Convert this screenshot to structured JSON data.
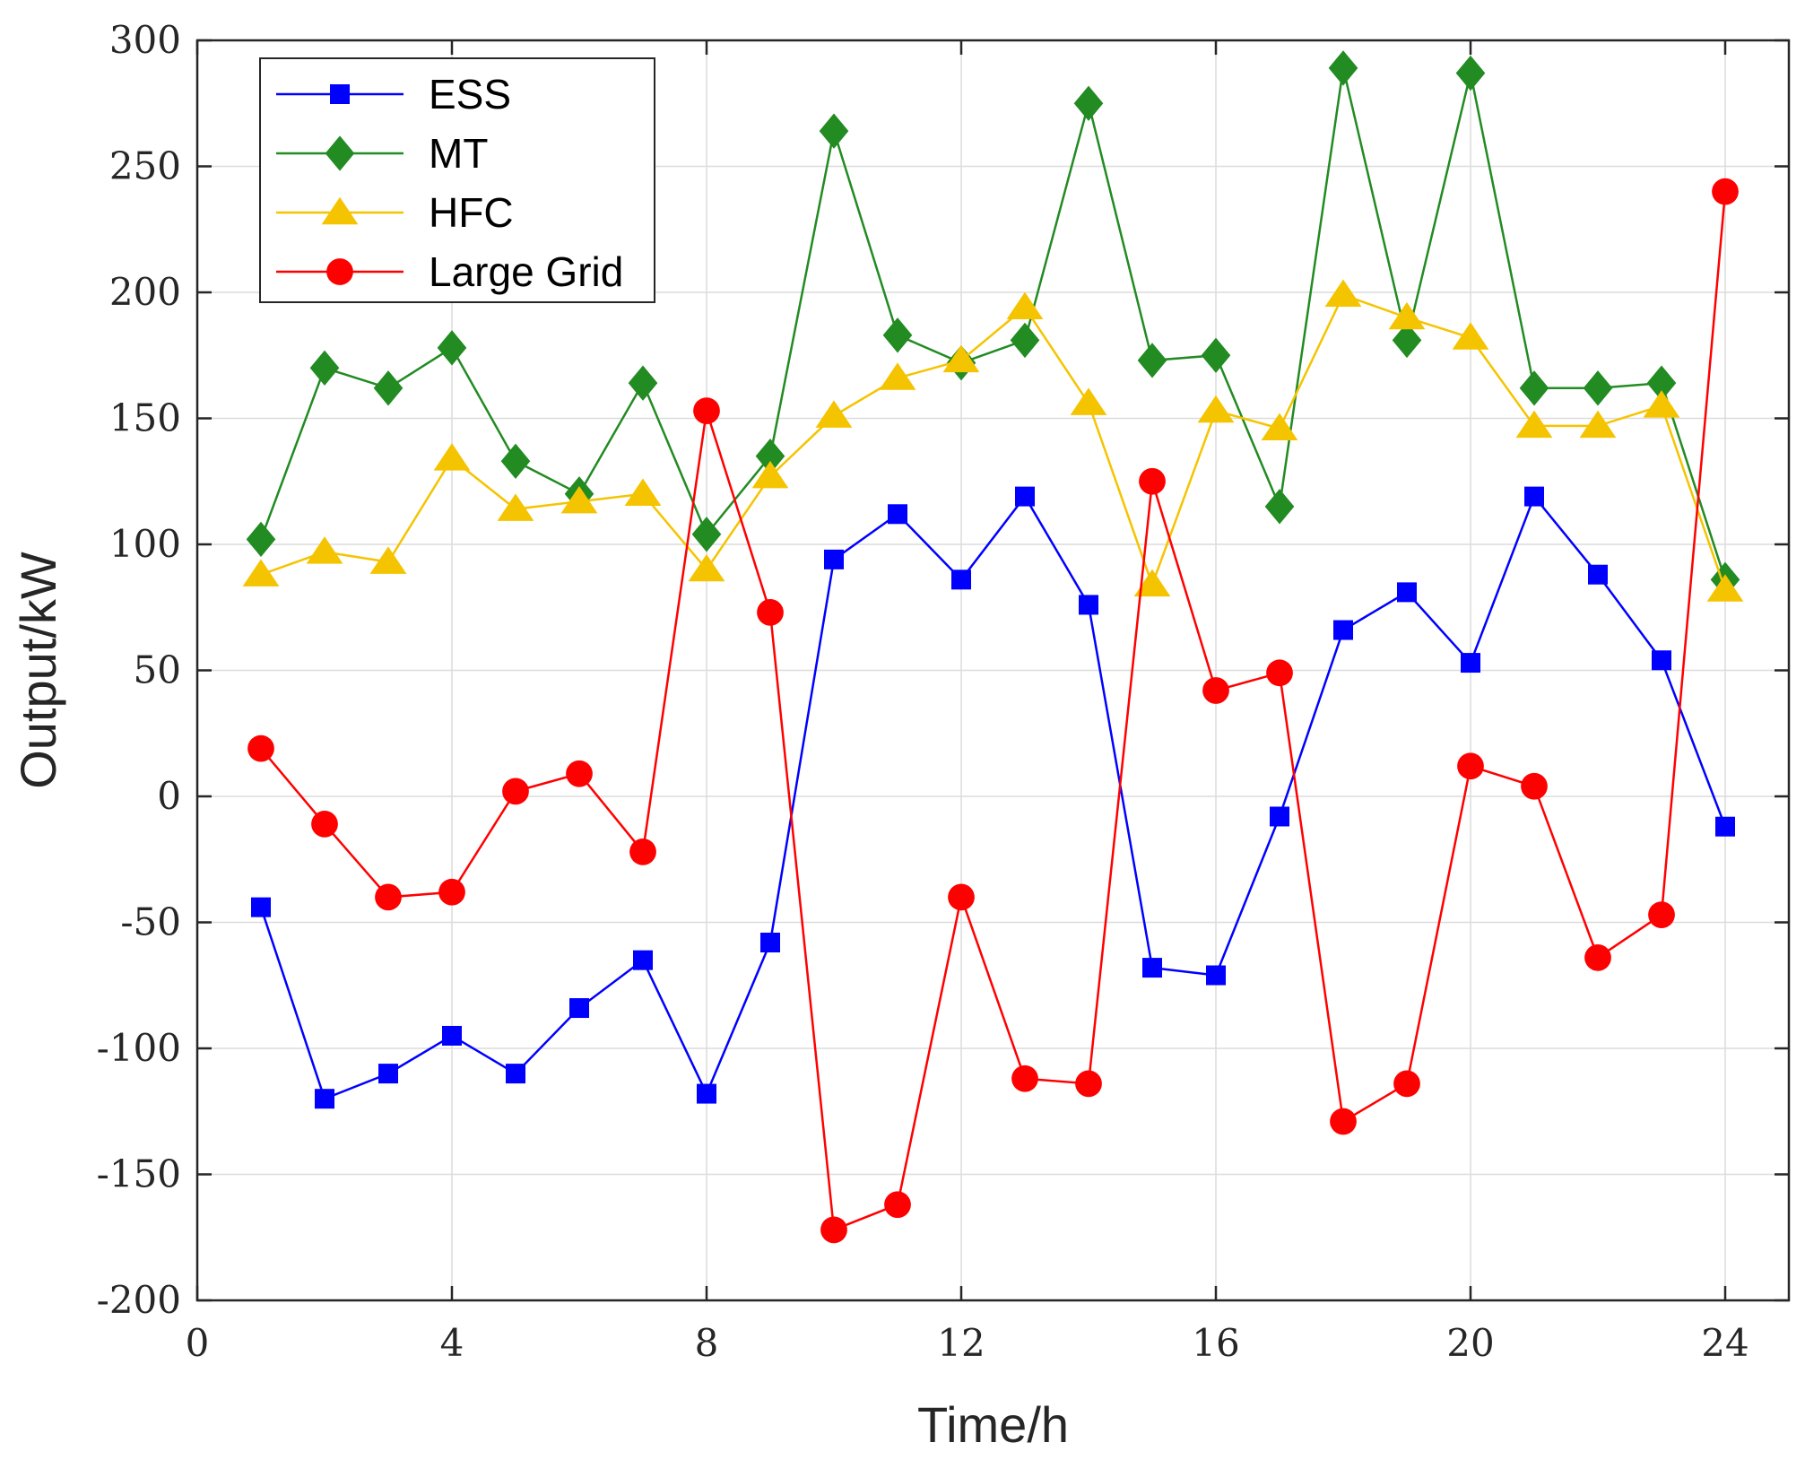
{
  "chart_data": {
    "type": "line",
    "title": "",
    "xlabel": "Time/h",
    "ylabel": "Output/kW",
    "xlim": [
      0,
      25
    ],
    "ylim": [
      -200,
      300
    ],
    "xticks": [
      0,
      4,
      8,
      12,
      16,
      20,
      24
    ],
    "xtick_labels": [
      "0",
      "4",
      "8",
      "12",
      "16",
      "20",
      "24"
    ],
    "yticks": [
      -200,
      -150,
      -100,
      -50,
      0,
      50,
      100,
      150,
      200,
      250,
      300
    ],
    "ytick_labels": [
      "-200",
      "-150",
      "-100",
      "-50",
      "0",
      "50",
      "100",
      "150",
      "200",
      "250",
      "300"
    ],
    "grid": true,
    "legend_position": "top-left",
    "x": [
      1,
      2,
      3,
      4,
      5,
      6,
      7,
      8,
      9,
      10,
      11,
      12,
      13,
      14,
      15,
      16,
      17,
      18,
      19,
      20,
      21,
      22,
      23,
      24
    ],
    "series": [
      {
        "name": "ESS",
        "color": "#0000ff",
        "marker": "square",
        "values": [
          -44,
          -120,
          -110,
          -95,
          -110,
          -84,
          -65,
          -118,
          -58,
          94,
          112,
          86,
          119,
          76,
          -68,
          -71,
          -8,
          66,
          81,
          53,
          119,
          88,
          54,
          -12
        ]
      },
      {
        "name": "MT",
        "color": "#228b22",
        "marker": "diamond",
        "values": [
          102,
          170,
          162,
          178,
          133,
          120,
          164,
          104,
          135,
          264,
          183,
          172,
          181,
          275,
          173,
          175,
          115,
          289,
          181,
          287,
          162,
          162,
          164,
          86
        ]
      },
      {
        "name": "HFC",
        "color": "#f5c400",
        "marker": "triangle",
        "values": [
          88,
          97,
          93,
          134,
          114,
          117,
          120,
          90,
          127,
          151,
          166,
          173,
          194,
          156,
          84,
          153,
          146,
          199,
          190,
          182,
          147,
          147,
          155,
          82
        ]
      },
      {
        "name": "Large Grid",
        "color": "#ff0000",
        "marker": "circle",
        "values": [
          19,
          -11,
          -40,
          -38,
          2,
          9,
          -22,
          153,
          73,
          -172,
          -162,
          -40,
          -112,
          -114,
          125,
          42,
          49,
          -129,
          -114,
          12,
          4,
          -64,
          -47,
          240
        ]
      }
    ]
  }
}
